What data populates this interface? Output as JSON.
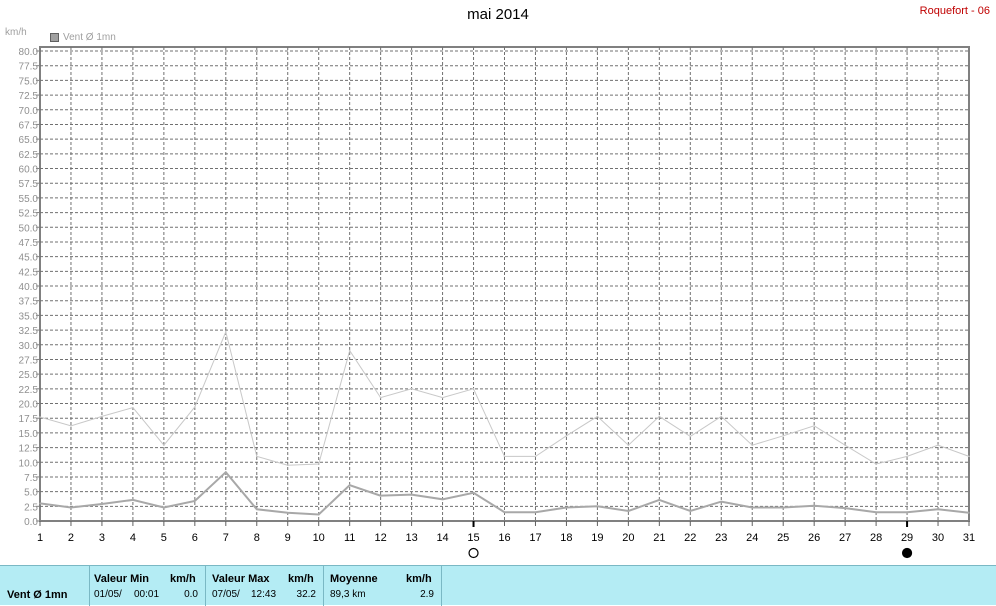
{
  "header": {
    "title": "mai 2014",
    "station": "Roquefort - 06",
    "unit": "km/h",
    "legend_label": "Vent Ø 1mn"
  },
  "chart_data": {
    "type": "line",
    "title": "mai 2014",
    "ylabel": "km/h",
    "xlim": [
      1,
      31
    ],
    "ylim": [
      0,
      80
    ],
    "y_ticks": [
      "0.0",
      "2.5",
      "5.0",
      "7.5",
      "10.0",
      "12.5",
      "15.0",
      "17.5",
      "20.0",
      "22.5",
      "25.0",
      "27.5",
      "30.0",
      "32.5",
      "35.0",
      "37.5",
      "40.0",
      "42.5",
      "45.0",
      "47.5",
      "50.0",
      "52.5",
      "55.0",
      "57.5",
      "60.0",
      "62.5",
      "65.0",
      "67.5",
      "70.0",
      "72.5",
      "75.0",
      "77.5",
      "80.0"
    ],
    "x_ticks": [
      "1",
      "2",
      "3",
      "4",
      "5",
      "6",
      "7",
      "8",
      "9",
      "10",
      "11",
      "12",
      "13",
      "14",
      "15",
      "16",
      "17",
      "18",
      "19",
      "20",
      "21",
      "22",
      "23",
      "24",
      "25",
      "26",
      "27",
      "28",
      "29",
      "30",
      "31"
    ],
    "grid": true,
    "series": [
      {
        "name": "Vent Ø 1mn",
        "color": "#a8a8a8",
        "x": [
          1,
          2,
          3,
          4,
          5,
          6,
          7,
          8,
          9,
          10,
          11,
          12,
          13,
          14,
          15,
          16,
          17,
          18,
          19,
          20,
          21,
          22,
          23,
          24,
          25,
          26,
          27,
          28,
          29,
          30,
          31
        ],
        "values": [
          3.0,
          2.3,
          2.9,
          3.6,
          2.3,
          3.4,
          8.3,
          2.0,
          1.4,
          1.1,
          6.1,
          4.3,
          4.5,
          3.7,
          4.8,
          1.5,
          1.5,
          2.3,
          2.5,
          1.7,
          3.6,
          1.7,
          3.3,
          2.3,
          2.3,
          2.6,
          2.2,
          1.5,
          1.5,
          2.0,
          1.4
        ]
      },
      {
        "color": "#c8c8c8",
        "x": [
          1,
          2,
          3,
          4,
          5,
          6,
          7,
          8,
          9,
          10,
          11,
          12,
          13,
          14,
          15,
          16,
          17,
          18,
          19,
          20,
          21,
          22,
          23,
          24,
          25,
          26,
          27,
          28,
          29,
          30,
          31
        ],
        "values": [
          17.7,
          16.2,
          17.8,
          19.3,
          12.9,
          19.4,
          32.2,
          11.0,
          9.5,
          9.7,
          29.0,
          21.0,
          22.5,
          21.0,
          22.5,
          11.0,
          11.0,
          14.5,
          17.8,
          12.9,
          17.8,
          14.4,
          17.8,
          12.9,
          14.5,
          16.2,
          12.9,
          9.7,
          11.0,
          12.9,
          11.0
        ]
      }
    ],
    "moon_phases": [
      {
        "day": 15,
        "phase": "full-moon"
      },
      {
        "day": 29,
        "phase": "new-moon"
      }
    ]
  },
  "footer": {
    "series_name": "Vent Ø 1mn",
    "min": {
      "header": "Valeur Min",
      "unit": "km/h",
      "date": "01/05/",
      "time": "00:01",
      "value": "0.0"
    },
    "max": {
      "header": "Valeur Max",
      "unit": "km/h",
      "date": "07/05/",
      "time": "12:43",
      "value": "32.2"
    },
    "avg": {
      "header": "Moyenne",
      "unit": "km/h",
      "distance": "89,3 km",
      "value": "2.9"
    }
  }
}
